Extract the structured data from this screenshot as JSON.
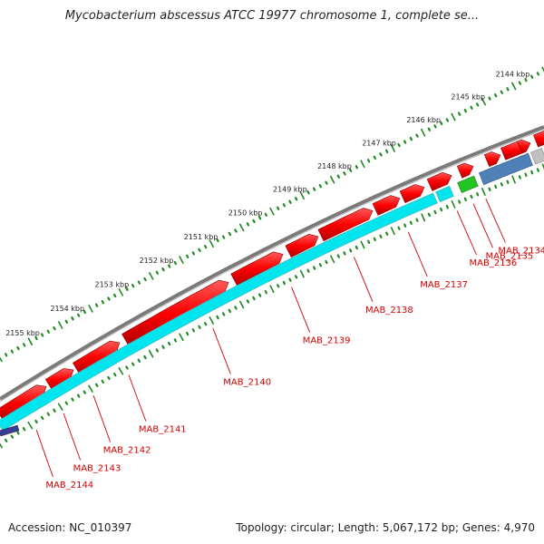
{
  "title": "Mycobacterium abscessus ATCC 19977 chromosome 1, complete se...",
  "footer": {
    "accession": "Accession: NC_010397",
    "stats": "Topology: circular; Length: 5,067,172 bp; Genes: 4,970"
  },
  "ticks": [
    {
      "label": "2144 kbp",
      "pos": 2144
    },
    {
      "label": "2145 kbp",
      "pos": 2145
    },
    {
      "label": "2146 kbp",
      "pos": 2146
    },
    {
      "label": "2147 kbp",
      "pos": 2147
    },
    {
      "label": "2148 kbp",
      "pos": 2148
    },
    {
      "label": "2149 kbp",
      "pos": 2149
    },
    {
      "label": "2150 kbp",
      "pos": 2150
    },
    {
      "label": "2151 kbp",
      "pos": 2151
    },
    {
      "label": "2152 kbp",
      "pos": 2152
    },
    {
      "label": "2153 kbp",
      "pos": 2153
    },
    {
      "label": "2154 kbp",
      "pos": 2154
    },
    {
      "label": "2155 kbp",
      "pos": 2155
    }
  ],
  "gene_labels": [
    {
      "name": "MAB_2134",
      "t": 0.888
    },
    {
      "name": "MAB_2135",
      "t": 0.865
    },
    {
      "name": "MAB_2136",
      "t": 0.835
    },
    {
      "name": "MAB_2137",
      "t": 0.745
    },
    {
      "name": "MAB_2138",
      "t": 0.645
    },
    {
      "name": "MAB_2139",
      "t": 0.53
    },
    {
      "name": "MAB_2140",
      "t": 0.385
    },
    {
      "name": "MAB_2141",
      "t": 0.23
    },
    {
      "name": "MAB_2142",
      "t": 0.165
    },
    {
      "name": "MAB_2143",
      "t": 0.11
    },
    {
      "name": "MAB_2144",
      "t": 0.06
    }
  ],
  "colors": {
    "backbone": "#7a7a7a",
    "gene": "#ff0000",
    "cds": "#00e5ee",
    "ticks": "#1f8a1f",
    "label": "#d40000",
    "rna": "#22c422",
    "other_feature": "#4f81b8",
    "gray_feature": "#c0c0c0"
  }
}
